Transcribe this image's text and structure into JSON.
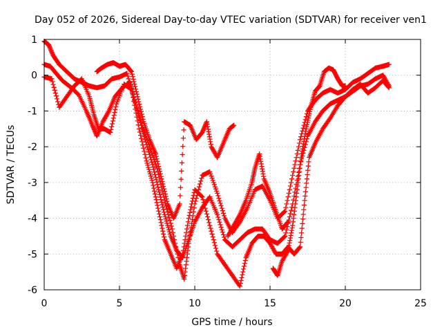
{
  "chart_data": {
    "type": "scatter",
    "title": "Day 052 of 2026, Sidereal Day-to-day VTEC variation (SDTVAR) for receiver ven1",
    "xlabel": "GPS time / hours",
    "ylabel": "SDTVAR / TECUs",
    "xlim": [
      0,
      25
    ],
    "ylim": [
      -6,
      1
    ],
    "x_ticks": [
      0,
      5,
      10,
      15,
      20,
      25
    ],
    "y_ticks": [
      1,
      0,
      -1,
      -2,
      -3,
      -4,
      -5,
      -6
    ],
    "grid": true,
    "marker": "plus",
    "colors": {
      "series": "#ff0000",
      "grid": "#a0a0a0",
      "axes": "#000000"
    },
    "series": [
      {
        "values": [
          [
            0.0,
            0.95
          ],
          [
            0.3,
            0.85
          ],
          [
            0.6,
            0.55
          ],
          [
            1.0,
            0.3
          ],
          [
            1.5,
            0.1
          ],
          [
            2.0,
            -0.1
          ],
          [
            2.5,
            -0.2
          ],
          [
            3.0,
            -0.3
          ],
          [
            3.5,
            -0.35
          ],
          [
            4.0,
            -0.3
          ],
          [
            4.5,
            -0.1
          ],
          [
            5.0,
            -0.05
          ],
          [
            5.5,
            0.05
          ],
          [
            6.0,
            -0.7
          ],
          [
            6.5,
            -1.4
          ],
          [
            7.0,
            -2.0
          ],
          [
            7.5,
            -2.6
          ],
          [
            8.0,
            -3.5
          ],
          [
            8.5,
            -4.3
          ],
          [
            9.0,
            -5.3
          ],
          [
            9.3,
            -5.7
          ],
          [
            9.6,
            -4.7
          ],
          [
            10.0,
            -3.6
          ],
          [
            10.5,
            -2.8
          ],
          [
            11.0,
            -2.7
          ],
          [
            11.5,
            -3.3
          ],
          [
            12.0,
            -4.0
          ],
          [
            12.5,
            -4.4
          ],
          [
            13.0,
            -4.1
          ],
          [
            13.5,
            -3.7
          ],
          [
            14.0,
            -3.2
          ],
          [
            14.5,
            -3.1
          ],
          [
            15.0,
            -3.5
          ],
          [
            15.5,
            -4.0
          ],
          [
            16.0,
            -3.8
          ],
          [
            16.5,
            -2.8
          ],
          [
            17.0,
            -1.8
          ],
          [
            17.5,
            -1.0
          ],
          [
            18.0,
            -0.7
          ],
          [
            18.5,
            -0.5
          ],
          [
            19.0,
            -0.4
          ],
          [
            19.5,
            -0.5
          ],
          [
            20.0,
            -0.4
          ],
          [
            20.5,
            -0.2
          ],
          [
            21.0,
            -0.1
          ],
          [
            21.5,
            0.05
          ],
          [
            22.0,
            0.2
          ],
          [
            22.5,
            0.25
          ],
          [
            22.9,
            0.3
          ]
        ]
      },
      {
        "values": [
          [
            0.0,
            0.3
          ],
          [
            0.4,
            0.25
          ],
          [
            0.8,
            0.05
          ],
          [
            1.2,
            -0.15
          ],
          [
            1.8,
            -0.35
          ],
          [
            2.3,
            -0.55
          ],
          [
            2.8,
            -1.0
          ],
          [
            3.2,
            -1.4
          ],
          [
            3.5,
            -1.7
          ],
          [
            3.9,
            -1.3
          ],
          [
            4.3,
            -1.0
          ],
          [
            4.7,
            -0.6
          ],
          [
            5.2,
            -0.35
          ],
          [
            5.7,
            -0.2
          ],
          [
            6.2,
            -1.0
          ],
          [
            6.7,
            -1.8
          ],
          [
            7.2,
            -2.5
          ],
          [
            7.6,
            -3.2
          ],
          [
            8.0,
            -3.9
          ],
          [
            8.4,
            -4.5
          ],
          [
            8.8,
            -4.9
          ],
          [
            9.2,
            -5.1
          ],
          [
            9.6,
            -4.6
          ],
          [
            10.0,
            -4.1
          ],
          [
            10.5,
            -3.7
          ],
          [
            11.0,
            -3.4
          ],
          [
            11.5,
            -3.9
          ],
          [
            12.0,
            -4.6
          ],
          [
            12.5,
            -4.8
          ],
          [
            13.0,
            -4.6
          ],
          [
            13.5,
            -4.4
          ],
          [
            14.0,
            -4.3
          ],
          [
            14.5,
            -4.3
          ],
          [
            15.0,
            -4.6
          ],
          [
            15.5,
            -4.7
          ],
          [
            16.0,
            -4.5
          ],
          [
            16.5,
            -3.6
          ],
          [
            17.0,
            -2.5
          ],
          [
            17.5,
            -1.7
          ],
          [
            18.0,
            -1.3
          ],
          [
            18.5,
            -1.0
          ],
          [
            19.0,
            -0.8
          ],
          [
            19.5,
            -0.7
          ],
          [
            20.0,
            -0.6
          ],
          [
            20.5,
            -0.45
          ],
          [
            21.0,
            -0.3
          ],
          [
            21.5,
            -0.25
          ],
          [
            22.0,
            -0.1
          ],
          [
            22.5,
            0.0
          ],
          [
            22.9,
            -0.3
          ]
        ]
      },
      {
        "values": [
          [
            0.0,
            -0.05
          ],
          [
            0.5,
            -0.1
          ],
          [
            1.0,
            -0.9
          ],
          [
            1.5,
            -0.6
          ],
          [
            2.0,
            -0.3
          ],
          [
            2.5,
            -0.1
          ],
          [
            3.0,
            -0.6
          ],
          [
            3.3,
            -1.1
          ],
          [
            3.6,
            -1.5
          ],
          [
            4.0,
            -1.5
          ],
          [
            4.4,
            -1.6
          ],
          [
            4.8,
            -0.8
          ],
          [
            5.3,
            -0.25
          ],
          [
            5.8,
            -0.4
          ],
          [
            6.3,
            -1.5
          ],
          [
            6.8,
            -2.4
          ],
          [
            7.2,
            -3.0
          ],
          [
            7.6,
            -3.8
          ],
          [
            8.0,
            -4.6
          ],
          [
            8.4,
            -5.0
          ],
          [
            8.8,
            -5.4
          ],
          [
            9.2,
            -5.0
          ],
          [
            9.6,
            -4.0
          ],
          [
            10.0,
            -3.2
          ],
          [
            10.5,
            -3.4
          ],
          [
            11.0,
            -4.2
          ],
          [
            11.5,
            -5.0
          ],
          [
            12.0,
            -5.3
          ],
          [
            12.5,
            -5.6
          ],
          [
            13.0,
            -5.9
          ],
          [
            13.4,
            -5.1
          ],
          [
            13.8,
            -4.7
          ],
          [
            14.2,
            -4.5
          ],
          [
            14.6,
            -4.5
          ],
          [
            15.0,
            -4.7
          ],
          [
            15.4,
            -5.0
          ],
          [
            15.8,
            -5.0
          ],
          [
            16.2,
            -4.8
          ],
          [
            16.6,
            -5.0
          ],
          [
            17.0,
            -4.8
          ],
          [
            17.3,
            -3.5
          ],
          [
            17.6,
            -2.3
          ],
          [
            18.0,
            -1.9
          ],
          [
            18.5,
            -1.5
          ],
          [
            19.0,
            -1.2
          ],
          [
            19.5,
            -0.85
          ],
          [
            20.0,
            -0.6
          ],
          [
            20.5,
            -0.4
          ],
          [
            21.0,
            -0.25
          ],
          [
            21.5,
            -0.5
          ],
          [
            22.0,
            -0.35
          ],
          [
            22.5,
            -0.15
          ],
          [
            22.9,
            -0.35
          ]
        ]
      },
      {
        "values": [
          [
            3.5,
            0.1
          ],
          [
            3.8,
            0.2
          ],
          [
            4.2,
            0.3
          ],
          [
            4.6,
            0.35
          ],
          [
            5.0,
            0.25
          ],
          [
            5.4,
            0.3
          ],
          [
            5.8,
            0.1
          ],
          [
            6.2,
            -0.6
          ],
          [
            6.6,
            -1.3
          ],
          [
            7.0,
            -1.8
          ],
          [
            7.4,
            -2.2
          ],
          [
            7.8,
            -2.9
          ],
          [
            8.2,
            -3.6
          ],
          [
            8.6,
            -4.0
          ],
          [
            9.0,
            -3.6
          ],
          [
            9.3,
            -1.3
          ],
          [
            9.7,
            -1.4
          ],
          [
            10.1,
            -1.8
          ],
          [
            10.5,
            -1.6
          ],
          [
            10.8,
            -1.3
          ],
          [
            11.1,
            -2.0
          ],
          [
            11.5,
            -2.3
          ],
          [
            11.9,
            -1.9
          ],
          [
            12.3,
            -1.5
          ],
          [
            12.6,
            -1.4
          ]
        ]
      },
      {
        "values": [
          [
            15.2,
            -5.4
          ],
          [
            15.5,
            -5.6
          ],
          [
            15.8,
            -5.2
          ],
          [
            16.2,
            -4.9
          ],
          [
            16.5,
            -4.2
          ],
          [
            16.8,
            -3.2
          ],
          [
            17.1,
            -2.2
          ],
          [
            17.4,
            -1.5
          ],
          [
            17.7,
            -0.9
          ],
          [
            18.0,
            -0.45
          ],
          [
            18.3,
            -0.3
          ],
          [
            18.6,
            0.1
          ],
          [
            18.9,
            0.2
          ],
          [
            19.2,
            0.15
          ],
          [
            19.5,
            -0.1
          ],
          [
            19.8,
            -0.3
          ],
          [
            20.0,
            -0.3
          ]
        ]
      },
      {
        "values": [
          [
            12.2,
            -4.5
          ],
          [
            12.6,
            -4.2
          ],
          [
            13.0,
            -3.9
          ],
          [
            13.4,
            -3.5
          ],
          [
            13.8,
            -3.0
          ],
          [
            14.0,
            -2.6
          ],
          [
            14.3,
            -2.2
          ],
          [
            14.6,
            -2.9
          ],
          [
            15.0,
            -3.3
          ],
          [
            15.4,
            -3.8
          ],
          [
            15.8,
            -4.3
          ],
          [
            16.2,
            -4.1
          ]
        ]
      }
    ]
  }
}
